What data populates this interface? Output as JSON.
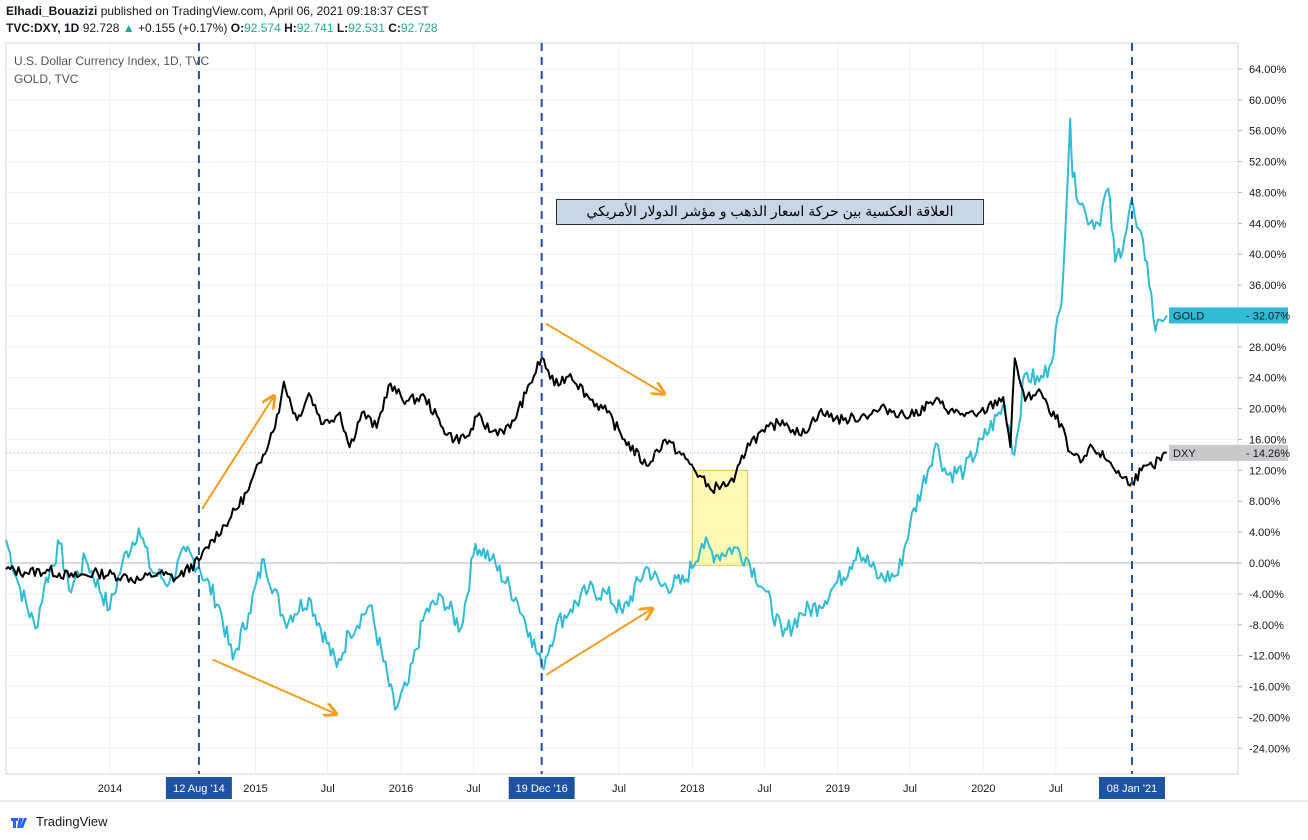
{
  "header": {
    "publisher": "Elhadi_Bouazizi",
    "published_text": "published on TradingView.com, April 06, 2021 09:18:37 CEST",
    "symbol": "TVC:DXY, 1D",
    "last": "92.728",
    "change_arrow": "▲",
    "change": "+0.155 (+0.17%)",
    "o_label": "O:",
    "o": "92.574",
    "h_label": "H:",
    "h": "92.741",
    "l_label": "L:",
    "l": "92.531",
    "c_label": "C:",
    "c": "92.728"
  },
  "legend": {
    "main": "U.S. Dollar Currency Index, 1D, TVC",
    "compare": "GOLD, TVC"
  },
  "annotation": "العلاقة العكسية بين حركة اسعار الذهب و مؤشر الدولار الأمريكي",
  "footer": {
    "brand": "TradingView"
  },
  "colors": {
    "dxy": "#000000",
    "gold": "#2fbcd4",
    "arrow": "#f59d1e",
    "vline": "#1e53a3",
    "highlight": "#fff59a",
    "dxy_tag": "#c9c9cc",
    "gold_tag": "#2fbcd4"
  },
  "chart_data": {
    "type": "line",
    "ylabel": "",
    "yunit": "%",
    "ylim": [
      -28,
      68
    ],
    "y_ticks": [
      "64.00%",
      "60.00%",
      "56.00%",
      "52.00%",
      "48.00%",
      "44.00%",
      "40.00%",
      "36.00%",
      "32.00%",
      "28.00%",
      "24.00%",
      "20.00%",
      "16.00%",
      "12.00%",
      "8.00%",
      "4.00%",
      "0.00%",
      "-4.00%",
      "-8.00%",
      "-12.00%",
      "-16.00%",
      "-20.00%",
      "-24.00%"
    ],
    "y_tick_values": [
      64,
      60,
      56,
      52,
      48,
      44,
      40,
      36,
      32,
      28,
      24,
      20,
      16,
      12,
      8,
      4,
      0,
      -4,
      -8,
      -12,
      -16,
      -20,
      -24
    ],
    "x_ticks": [
      {
        "date": "2014-01-01",
        "label": "2014"
      },
      {
        "date": "2015-01-01",
        "label": "2015"
      },
      {
        "date": "2015-07-01",
        "label": "Jul"
      },
      {
        "date": "2016-01-01",
        "label": "2016"
      },
      {
        "date": "2016-07-01",
        "label": "Jul"
      },
      {
        "date": "2017-07-01",
        "label": "Jul"
      },
      {
        "date": "2018-01-01",
        "label": "2018"
      },
      {
        "date": "2018-07-01",
        "label": "Jul"
      },
      {
        "date": "2019-01-01",
        "label": "2019"
      },
      {
        "date": "2019-07-01",
        "label": "Jul"
      },
      {
        "date": "2020-01-01",
        "label": "2020"
      },
      {
        "date": "2020-07-01",
        "label": "Jul"
      }
    ],
    "markers": [
      {
        "date": "2014-08-12",
        "label": "12 Aug '14"
      },
      {
        "date": "2016-12-19",
        "label": "19 Dec '16"
      },
      {
        "date": "2021-01-08",
        "label": "08 Jan '21"
      }
    ],
    "x_range": [
      "2013-04-15",
      "2021-10-01"
    ],
    "series": [
      {
        "name": "DXY",
        "last_label": "14.26%",
        "points": [
          [
            "2013-04-15",
            -0.8
          ],
          [
            "2013-06-01",
            -1.2
          ],
          [
            "2013-08-01",
            -1.0
          ],
          [
            "2013-10-01",
            -1.8
          ],
          [
            "2013-12-01",
            -1.3
          ],
          [
            "2014-02-01",
            -1.7
          ],
          [
            "2014-03-15",
            -2.2
          ],
          [
            "2014-05-01",
            -1.3
          ],
          [
            "2014-06-15",
            -2.0
          ],
          [
            "2014-08-12",
            0.3
          ],
          [
            "2014-09-15",
            3.0
          ],
          [
            "2014-11-01",
            6.0
          ],
          [
            "2014-12-15",
            9.5
          ],
          [
            "2015-01-20",
            14.0
          ],
          [
            "2015-03-01",
            19.5
          ],
          [
            "2015-03-13",
            23.5
          ],
          [
            "2015-04-15",
            18.5
          ],
          [
            "2015-05-15",
            22.0
          ],
          [
            "2015-06-20",
            18.0
          ],
          [
            "2015-08-01",
            19.5
          ],
          [
            "2015-08-25",
            15.0
          ],
          [
            "2015-09-25",
            19.5
          ],
          [
            "2015-11-01",
            17.5
          ],
          [
            "2015-12-01",
            23.0
          ],
          [
            "2016-01-15",
            21.0
          ],
          [
            "2016-03-01",
            21.5
          ],
          [
            "2016-04-15",
            17.5
          ],
          [
            "2016-05-15",
            16.0
          ],
          [
            "2016-06-20",
            16.5
          ],
          [
            "2016-07-10",
            19.0
          ],
          [
            "2016-08-15",
            17.0
          ],
          [
            "2016-10-01",
            17.5
          ],
          [
            "2016-11-10",
            22.0
          ],
          [
            "2016-12-19",
            26.6
          ],
          [
            "2017-01-20",
            23.0
          ],
          [
            "2017-03-01",
            24.5
          ],
          [
            "2017-04-15",
            21.5
          ],
          [
            "2017-06-01",
            19.5
          ],
          [
            "2017-07-15",
            16.0
          ],
          [
            "2017-09-08",
            12.6
          ],
          [
            "2017-10-25",
            16.0
          ],
          [
            "2017-12-15",
            13.5
          ],
          [
            "2018-02-15",
            9.6
          ],
          [
            "2018-03-15",
            10.0
          ],
          [
            "2018-04-15",
            10.5
          ],
          [
            "2018-05-20",
            15.5
          ],
          [
            "2018-07-01",
            17.0
          ],
          [
            "2018-08-15",
            18.5
          ],
          [
            "2018-10-01",
            16.5
          ],
          [
            "2018-11-15",
            19.5
          ],
          [
            "2019-01-15",
            18.5
          ],
          [
            "2019-03-01",
            19.0
          ],
          [
            "2019-05-01",
            20.0
          ],
          [
            "2019-07-01",
            19.0
          ],
          [
            "2019-09-01",
            21.0
          ],
          [
            "2019-10-20",
            19.5
          ],
          [
            "2019-12-15",
            19.0
          ],
          [
            "2020-02-20",
            21.5
          ],
          [
            "2020-03-09",
            15.0
          ],
          [
            "2020-03-20",
            26.5
          ],
          [
            "2020-04-15",
            21.0
          ],
          [
            "2020-05-20",
            22.5
          ],
          [
            "2020-06-15",
            19.5
          ],
          [
            "2020-07-15",
            18.0
          ],
          [
            "2020-08-01",
            14.5
          ],
          [
            "2020-09-01",
            13.0
          ],
          [
            "2020-10-01",
            15.0
          ],
          [
            "2020-11-15",
            13.0
          ],
          [
            "2020-12-15",
            11.0
          ],
          [
            "2021-01-08",
            10.5
          ],
          [
            "2021-02-01",
            12.0
          ],
          [
            "2021-03-01",
            12.5
          ],
          [
            "2021-04-06",
            14.26
          ]
        ]
      },
      {
        "name": "GOLD",
        "last_label": "32.07%",
        "points": [
          [
            "2013-04-15",
            3.0
          ],
          [
            "2013-05-15",
            -2.5
          ],
          [
            "2013-06-28",
            -8.5
          ],
          [
            "2013-07-20",
            -3.0
          ],
          [
            "2013-08-28",
            2.5
          ],
          [
            "2013-09-20",
            -3.5
          ],
          [
            "2013-11-01",
            0.5
          ],
          [
            "2013-12-31",
            -6.0
          ],
          [
            "2014-02-01",
            0.0
          ],
          [
            "2014-03-14",
            4.5
          ],
          [
            "2014-04-15",
            -1.0
          ],
          [
            "2014-05-30",
            -2.5
          ],
          [
            "2014-07-10",
            1.5
          ],
          [
            "2014-08-12",
            -0.5
          ],
          [
            "2014-10-01",
            -5.5
          ],
          [
            "2014-11-05",
            -12.5
          ],
          [
            "2014-12-15",
            -6.5
          ],
          [
            "2015-01-22",
            0.5
          ],
          [
            "2015-03-15",
            -7.5
          ],
          [
            "2015-05-15",
            -4.5
          ],
          [
            "2015-07-24",
            -13.5
          ],
          [
            "2015-08-24",
            -9.0
          ],
          [
            "2015-10-15",
            -5.5
          ],
          [
            "2015-12-17",
            -19.0
          ],
          [
            "2016-01-20",
            -15.5
          ],
          [
            "2016-03-01",
            -6.5
          ],
          [
            "2016-04-15",
            -4.5
          ],
          [
            "2016-05-30",
            -8.5
          ],
          [
            "2016-07-06",
            2.5
          ],
          [
            "2016-08-15",
            0.5
          ],
          [
            "2016-10-15",
            -4.5
          ],
          [
            "2016-11-20",
            -9.0
          ],
          [
            "2016-12-19",
            -13.5
          ],
          [
            "2017-01-25",
            -8.0
          ],
          [
            "2017-03-01",
            -6.0
          ],
          [
            "2017-04-15",
            -3.5
          ],
          [
            "2017-06-01",
            -4.0
          ],
          [
            "2017-07-10",
            -6.5
          ],
          [
            "2017-09-08",
            -0.5
          ],
          [
            "2017-10-15",
            -3.0
          ],
          [
            "2017-12-12",
            -2.5
          ],
          [
            "2018-01-25",
            2.5
          ],
          [
            "2018-03-01",
            1.0
          ],
          [
            "2018-04-15",
            2.0
          ],
          [
            "2018-05-20",
            0.5
          ],
          [
            "2018-07-01",
            -3.5
          ],
          [
            "2018-08-16",
            -9.5
          ],
          [
            "2018-10-01",
            -6.5
          ],
          [
            "2018-11-15",
            -5.5
          ],
          [
            "2018-12-15",
            -3.5
          ],
          [
            "2019-01-31",
            -0.5
          ],
          [
            "2019-02-20",
            2.0
          ],
          [
            "2019-04-15",
            -2.0
          ],
          [
            "2019-06-01",
            -1.5
          ],
          [
            "2019-07-01",
            5.0
          ],
          [
            "2019-09-04",
            15.5
          ],
          [
            "2019-10-01",
            11.5
          ],
          [
            "2019-11-15",
            12.0
          ],
          [
            "2019-12-31",
            16.0
          ],
          [
            "2020-02-24",
            20.5
          ],
          [
            "2020-03-19",
            14.0
          ],
          [
            "2020-04-14",
            24.5
          ],
          [
            "2020-05-20",
            23.5
          ],
          [
            "2020-06-15",
            25.5
          ],
          [
            "2020-07-15",
            33.5
          ],
          [
            "2020-08-06",
            57.5
          ],
          [
            "2020-08-12",
            50.0
          ],
          [
            "2020-09-15",
            45.0
          ],
          [
            "2020-10-15",
            44.0
          ],
          [
            "2020-11-09",
            48.5
          ],
          [
            "2020-11-27",
            39.0
          ],
          [
            "2020-12-20",
            42.0
          ],
          [
            "2021-01-06",
            47.0
          ],
          [
            "2021-01-20",
            43.5
          ],
          [
            "2021-02-15",
            39.0
          ],
          [
            "2021-03-08",
            30.0
          ],
          [
            "2021-03-20",
            31.5
          ],
          [
            "2021-04-06",
            32.07
          ]
        ]
      }
    ]
  }
}
